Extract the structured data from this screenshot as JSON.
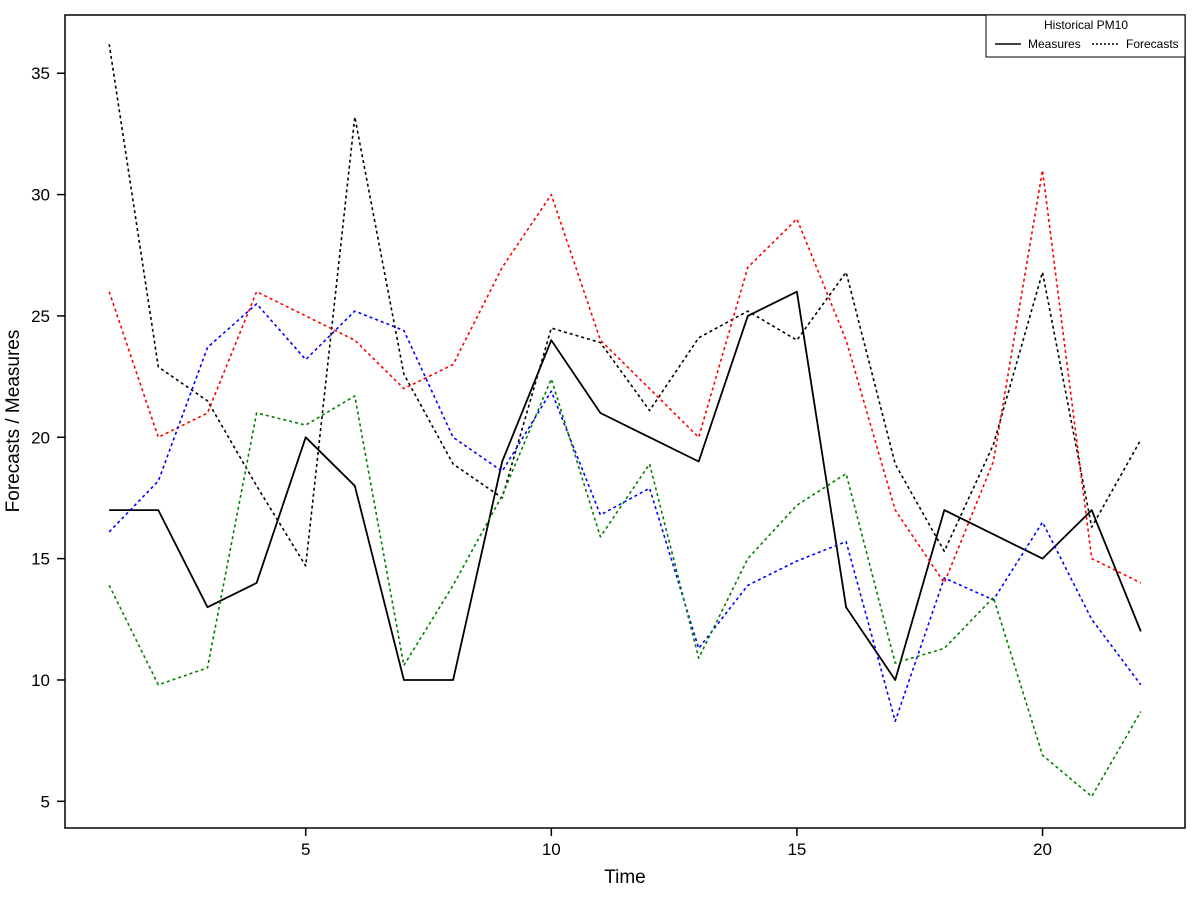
{
  "chart_data": {
    "type": "line",
    "xlabel": "Time",
    "ylabel": "Forecasts / Measures",
    "xlim": [
      0.1,
      22.9
    ],
    "ylim": [
      3.9,
      37.4
    ],
    "x_ticks": [
      5,
      10,
      15,
      20
    ],
    "y_ticks": [
      5,
      10,
      15,
      20,
      25,
      30,
      35
    ],
    "grid": false,
    "legend": {
      "title": "Historical PM10",
      "placement": "top-right",
      "entries": [
        {
          "label": "Measures",
          "style": "solid"
        },
        {
          "label": "Forecasts",
          "style": "dotted"
        }
      ]
    },
    "x": [
      1,
      2,
      3,
      4,
      5,
      6,
      7,
      8,
      9,
      10,
      11,
      12,
      13,
      14,
      15,
      16,
      17,
      18,
      19,
      20,
      21,
      22
    ],
    "series": [
      {
        "color": "#000000",
        "style": "solid",
        "values": [
          17,
          17,
          13,
          14,
          20,
          18,
          10,
          10,
          19,
          24,
          21,
          20,
          19,
          25,
          26,
          13,
          10,
          17,
          16,
          15,
          17,
          12
        ]
      },
      {
        "color": "#000000",
        "style": "dotted",
        "values": [
          36.2,
          22.9,
          21.5,
          18,
          14.7,
          33.2,
          22.6,
          18.9,
          17.5,
          24.5,
          23.9,
          21.1,
          24.1,
          25.2,
          24,
          26.8,
          18.9,
          15.3,
          19.7,
          26.8,
          16.3,
          19.9
        ]
      },
      {
        "color": "#ff0000",
        "style": "dotted",
        "values": [
          26,
          20,
          21,
          26,
          25,
          24,
          22,
          23,
          27,
          30,
          24,
          22,
          20,
          27,
          29,
          24,
          17,
          14,
          19,
          31,
          15,
          14
        ]
      },
      {
        "color": "#0000ff",
        "style": "dotted",
        "values": [
          16.1,
          18.2,
          23.7,
          25.5,
          23.2,
          25.2,
          24.4,
          20,
          18.6,
          21.9,
          16.8,
          17.9,
          11.3,
          13.9,
          14.9,
          15.7,
          8.3,
          14.2,
          13.3,
          16.5,
          12.5,
          9.8
        ]
      },
      {
        "color": "#008000",
        "style": "dotted",
        "values": [
          13.9,
          9.8,
          10.5,
          21,
          20.5,
          21.7,
          10.6,
          13.9,
          17.6,
          22.4,
          15.9,
          18.9,
          10.9,
          15,
          17.2,
          18.5,
          10.7,
          11.3,
          13.4,
          6.9,
          5.2,
          8.7
        ]
      }
    ]
  }
}
